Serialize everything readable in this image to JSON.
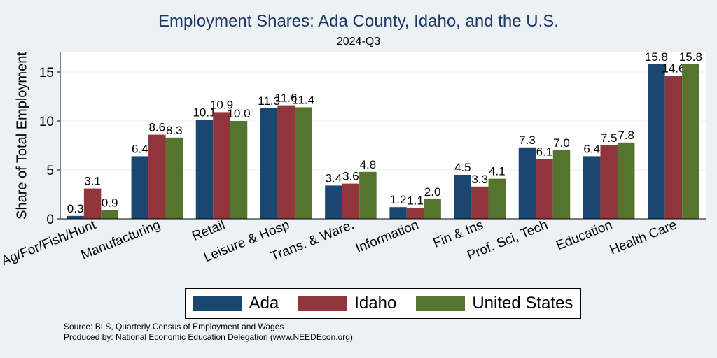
{
  "chart_data": {
    "type": "bar",
    "title": "Employment Shares: Ada County, Idaho, and the U.S.",
    "subtitle": "2024-Q3",
    "ylabel": "Share of Total Employment",
    "ylim": [
      0,
      17
    ],
    "yticks": [
      0,
      5,
      10,
      15
    ],
    "grid": true,
    "legend_position": "bottom",
    "categories": [
      "Ag/For/Fish/Hunt",
      "Manufacturing",
      "Retail",
      "Leisure & Hosp",
      "Trans. & Ware.",
      "Information",
      "Fin & Ins",
      "Prof, Sci, Tech",
      "Education",
      "Health Care"
    ],
    "series": [
      {
        "name": "Ada",
        "color": "#1a476f",
        "values": [
          0.3,
          6.4,
          10.1,
          11.3,
          3.4,
          1.2,
          4.5,
          7.3,
          6.4,
          15.8
        ]
      },
      {
        "name": "Idaho",
        "color": "#90353b",
        "values": [
          3.1,
          8.6,
          10.9,
          11.6,
          3.6,
          1.1,
          3.3,
          6.1,
          7.5,
          14.6
        ]
      },
      {
        "name": "United States",
        "color": "#55752f",
        "values": [
          0.9,
          8.3,
          10.0,
          11.4,
          4.8,
          2.0,
          4.1,
          7.0,
          7.8,
          15.8
        ]
      }
    ]
  },
  "footnotes": {
    "source": "Source: BLS, Quarterly Census of Employment and Wages",
    "produced": "Produced by: National Economic Education Delegation (www.NEEDEcon.org)"
  }
}
